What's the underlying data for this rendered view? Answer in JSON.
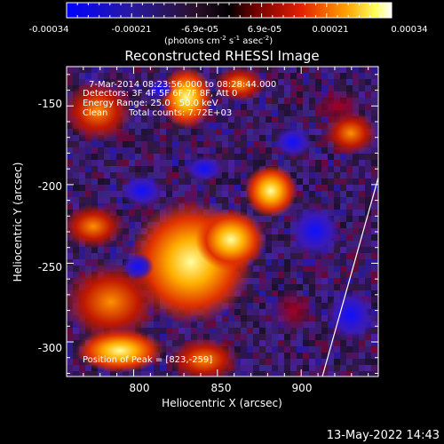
{
  "colorbar": {
    "ticks": [
      "-0.00034",
      "-0.00021",
      "-6.9e-05",
      "6.9e-05",
      "0.00021",
      "0.00034"
    ],
    "units_main": "(photons cm",
    "units_exp1": "-2",
    "units_mid1": " s",
    "units_exp2": "-1",
    "units_mid2": " asec",
    "units_exp3": "-2",
    "units_end": ")"
  },
  "title": "Reconstructed RHESSI Image",
  "annotations": {
    "time_range": "7-Mar-2014 08:23:56.000 to 08:28:44.000",
    "detectors": "Detectors: 3F 4F 5F 6F 7F 8F, Att 0",
    "energy": "Energy Range: 25.0 - 50.0 keV",
    "method": "Clean",
    "counts": "Total counts: 7.72E+03",
    "peak": "Position of Peak = [823,-259]"
  },
  "x_axis": {
    "label": "Heliocentric X (arcsec)",
    "ticks": [
      "800",
      "850",
      "900"
    ],
    "range": [
      760,
      946
    ]
  },
  "y_axis": {
    "label": "Heliocentric Y (arcsec)",
    "ticks": [
      "-150",
      "-200",
      "-250",
      "-300"
    ],
    "range": [
      -322,
      -125
    ]
  },
  "footer": {
    "date": "13-May-2022 14:43"
  },
  "colors": {
    "background": "#000000",
    "text": "#ffffff",
    "colormap": [
      "#0000ff",
      "#3a1aa8",
      "#2a1a3a",
      "#6a0050",
      "#a00000",
      "#ff5000",
      "#ffa000",
      "#ffff80",
      "#ffffff"
    ]
  }
}
